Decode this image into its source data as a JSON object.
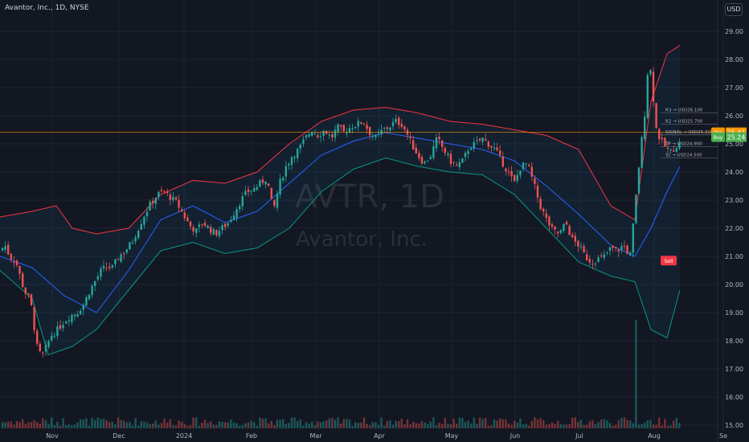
{
  "header": {
    "title": "Avantor, Inc., 1D, NYSE",
    "currency": "USD"
  },
  "watermark": {
    "symbol": "AVTR, 1D",
    "name": "Avantor, Inc."
  },
  "colors": {
    "background": "#131722",
    "grid": "#1f2330",
    "up": "#26a69a",
    "down": "#ef5350",
    "basis": "#2962ff",
    "upper": "#f23645",
    "lower": "#089981",
    "fill": "#2196f3",
    "pre": "#ff9800",
    "buy": "#4caf50",
    "sell": "#f23645"
  },
  "chart_data": {
    "type": "candlestick",
    "x_ticks": [
      "Nov",
      "Dec",
      "2024",
      "Feb",
      "Mar",
      "Apr",
      "May",
      "Jun",
      "Jul",
      "Aug",
      "Se"
    ],
    "y_ticks": [
      "29.00",
      "28.00",
      "27.00",
      "26.00",
      "25.00",
      "24.00",
      "23.00",
      "22.00",
      "21.00",
      "20.00",
      "19.00",
      "18.00",
      "17.00",
      "16.00",
      "15.00"
    ],
    "ylim": [
      15.0,
      29.5
    ],
    "price_path": [
      [
        0,
        21.2
      ],
      [
        6,
        21.4
      ],
      [
        12,
        21.0
      ],
      [
        20,
        20.8
      ],
      [
        30,
        19.8
      ],
      [
        38,
        19.4
      ],
      [
        46,
        17.8
      ],
      [
        52,
        17.4
      ],
      [
        58,
        17.8
      ],
      [
        64,
        18.2
      ],
      [
        72,
        18.4
      ],
      [
        80,
        18.7
      ],
      [
        88,
        18.9
      ],
      [
        96,
        19.0
      ],
      [
        104,
        19.3
      ],
      [
        112,
        19.8
      ],
      [
        120,
        20.2
      ],
      [
        126,
        20.5
      ],
      [
        132,
        20.6
      ],
      [
        140,
        20.6
      ],
      [
        148,
        21.0
      ],
      [
        156,
        21.2
      ],
      [
        164,
        21.5
      ],
      [
        172,
        22.0
      ],
      [
        180,
        22.5
      ],
      [
        188,
        22.9
      ],
      [
        196,
        23.2
      ],
      [
        204,
        23.3
      ],
      [
        212,
        23.1
      ],
      [
        220,
        22.9
      ],
      [
        228,
        22.5
      ],
      [
        236,
        22.1
      ],
      [
        244,
        21.9
      ],
      [
        252,
        22.2
      ],
      [
        260,
        22.0
      ],
      [
        268,
        21.8
      ],
      [
        276,
        22.0
      ],
      [
        284,
        22.2
      ],
      [
        292,
        22.6
      ],
      [
        300,
        23.0
      ],
      [
        308,
        23.3
      ],
      [
        316,
        23.4
      ],
      [
        324,
        23.6
      ],
      [
        332,
        23.8
      ],
      [
        340,
        22.6
      ],
      [
        348,
        23.6
      ],
      [
        356,
        24.2
      ],
      [
        364,
        24.6
      ],
      [
        372,
        24.8
      ],
      [
        380,
        25.2
      ],
      [
        388,
        25.5
      ],
      [
        396,
        25.3
      ],
      [
        404,
        25.5
      ],
      [
        412,
        25.2
      ],
      [
        420,
        25.6
      ],
      [
        428,
        25.4
      ],
      [
        436,
        25.6
      ],
      [
        444,
        25.7
      ],
      [
        452,
        25.8
      ],
      [
        460,
        25.4
      ],
      [
        468,
        25.2
      ],
      [
        476,
        25.5
      ],
      [
        484,
        25.6
      ],
      [
        492,
        25.8
      ],
      [
        500,
        25.7
      ],
      [
        506,
        25.4
      ],
      [
        512,
        25.0
      ],
      [
        520,
        24.6
      ],
      [
        528,
        24.3
      ],
      [
        536,
        24.6
      ],
      [
        544,
        25.2
      ],
      [
        552,
        24.8
      ],
      [
        560,
        24.4
      ],
      [
        568,
        24.2
      ],
      [
        576,
        24.4
      ],
      [
        584,
        24.9
      ],
      [
        592,
        25.0
      ],
      [
        600,
        25.2
      ],
      [
        608,
        25.0
      ],
      [
        616,
        24.8
      ],
      [
        624,
        24.4
      ],
      [
        632,
        24.0
      ],
      [
        640,
        23.6
      ],
      [
        648,
        24.2
      ],
      [
        656,
        24.3
      ],
      [
        664,
        23.6
      ],
      [
        672,
        22.8
      ],
      [
        680,
        22.3
      ],
      [
        688,
        21.9
      ],
      [
        696,
        21.8
      ],
      [
        704,
        22.2
      ],
      [
        712,
        21.6
      ],
      [
        720,
        21.4
      ],
      [
        728,
        21.0
      ],
      [
        736,
        20.8
      ],
      [
        744,
        20.9
      ],
      [
        752,
        21.0
      ],
      [
        760,
        21.3
      ],
      [
        768,
        21.2
      ],
      [
        776,
        21.4
      ],
      [
        784,
        21.0
      ],
      [
        790,
        22.7
      ],
      [
        796,
        24.5
      ],
      [
        802,
        26.0
      ],
      [
        806,
        27.6
      ],
      [
        810,
        27.6
      ],
      [
        816,
        25.6
      ],
      [
        822,
        25.1
      ],
      [
        828,
        24.9
      ],
      [
        834,
        24.7
      ],
      [
        840,
        24.9
      ],
      [
        846,
        25.0
      ]
    ],
    "basis": [
      [
        0,
        21.0
      ],
      [
        40,
        20.6
      ],
      [
        80,
        19.6
      ],
      [
        120,
        19.0
      ],
      [
        160,
        20.5
      ],
      [
        200,
        22.3
      ],
      [
        240,
        22.8
      ],
      [
        280,
        22.2
      ],
      [
        320,
        22.6
      ],
      [
        360,
        23.6
      ],
      [
        400,
        24.6
      ],
      [
        440,
        25.1
      ],
      [
        480,
        25.4
      ],
      [
        520,
        25.2
      ],
      [
        560,
        25.0
      ],
      [
        600,
        24.8
      ],
      [
        640,
        24.4
      ],
      [
        680,
        23.5
      ],
      [
        720,
        22.5
      ],
      [
        760,
        21.4
      ],
      [
        790,
        21.0
      ],
      [
        810,
        22.0
      ],
      [
        830,
        23.3
      ],
      [
        846,
        24.2
      ]
    ],
    "upper": [
      [
        0,
        22.4
      ],
      [
        40,
        22.6
      ],
      [
        70,
        22.8
      ],
      [
        90,
        22.0
      ],
      [
        120,
        21.8
      ],
      [
        160,
        22.0
      ],
      [
        200,
        23.2
      ],
      [
        240,
        23.7
      ],
      [
        280,
        23.6
      ],
      [
        320,
        24.0
      ],
      [
        360,
        25.0
      ],
      [
        400,
        25.8
      ],
      [
        440,
        26.2
      ],
      [
        480,
        26.3
      ],
      [
        520,
        26.1
      ],
      [
        560,
        25.8
      ],
      [
        600,
        25.7
      ],
      [
        640,
        25.5
      ],
      [
        680,
        25.3
      ],
      [
        720,
        24.8
      ],
      [
        760,
        22.8
      ],
      [
        790,
        22.3
      ],
      [
        810,
        26.5
      ],
      [
        830,
        28.2
      ],
      [
        846,
        28.5
      ]
    ],
    "lower": [
      [
        0,
        20.5
      ],
      [
        40,
        19.5
      ],
      [
        60,
        17.5
      ],
      [
        90,
        17.8
      ],
      [
        120,
        18.4
      ],
      [
        160,
        19.8
      ],
      [
        200,
        21.2
      ],
      [
        240,
        21.5
      ],
      [
        280,
        21.1
      ],
      [
        320,
        21.3
      ],
      [
        360,
        22.0
      ],
      [
        400,
        23.3
      ],
      [
        440,
        24.1
      ],
      [
        480,
        24.5
      ],
      [
        520,
        24.2
      ],
      [
        560,
        24.0
      ],
      [
        600,
        23.9
      ],
      [
        640,
        23.2
      ],
      [
        680,
        22.0
      ],
      [
        720,
        20.8
      ],
      [
        760,
        20.3
      ],
      [
        790,
        20.1
      ],
      [
        810,
        18.4
      ],
      [
        830,
        18.1
      ],
      [
        846,
        19.8
      ]
    ],
    "volume": {
      "spike_index": 792,
      "spike_value": 2.4
    },
    "levels": [
      {
        "label": "R3 → USD26.100",
        "value": 26.1
      },
      {
        "label": "R2 → USD25.700",
        "value": 25.7
      },
      {
        "label": "SIGNAL → USD25.320",
        "value": 25.32
      },
      {
        "label": "TP → USD24.900",
        "value": 24.9
      },
      {
        "label": "SL → USD24.500",
        "value": 24.5
      }
    ],
    "hline": 25.41,
    "badges": [
      {
        "label": "Pre",
        "value": "25.41",
        "kind": "pre",
        "y": 25.41
      },
      {
        "label": "Buy",
        "value": "25.24",
        "kind": "buy",
        "y": 25.24
      },
      {
        "label": "Sell",
        "value": "",
        "kind": "sell",
        "y": 20.85
      }
    ]
  }
}
